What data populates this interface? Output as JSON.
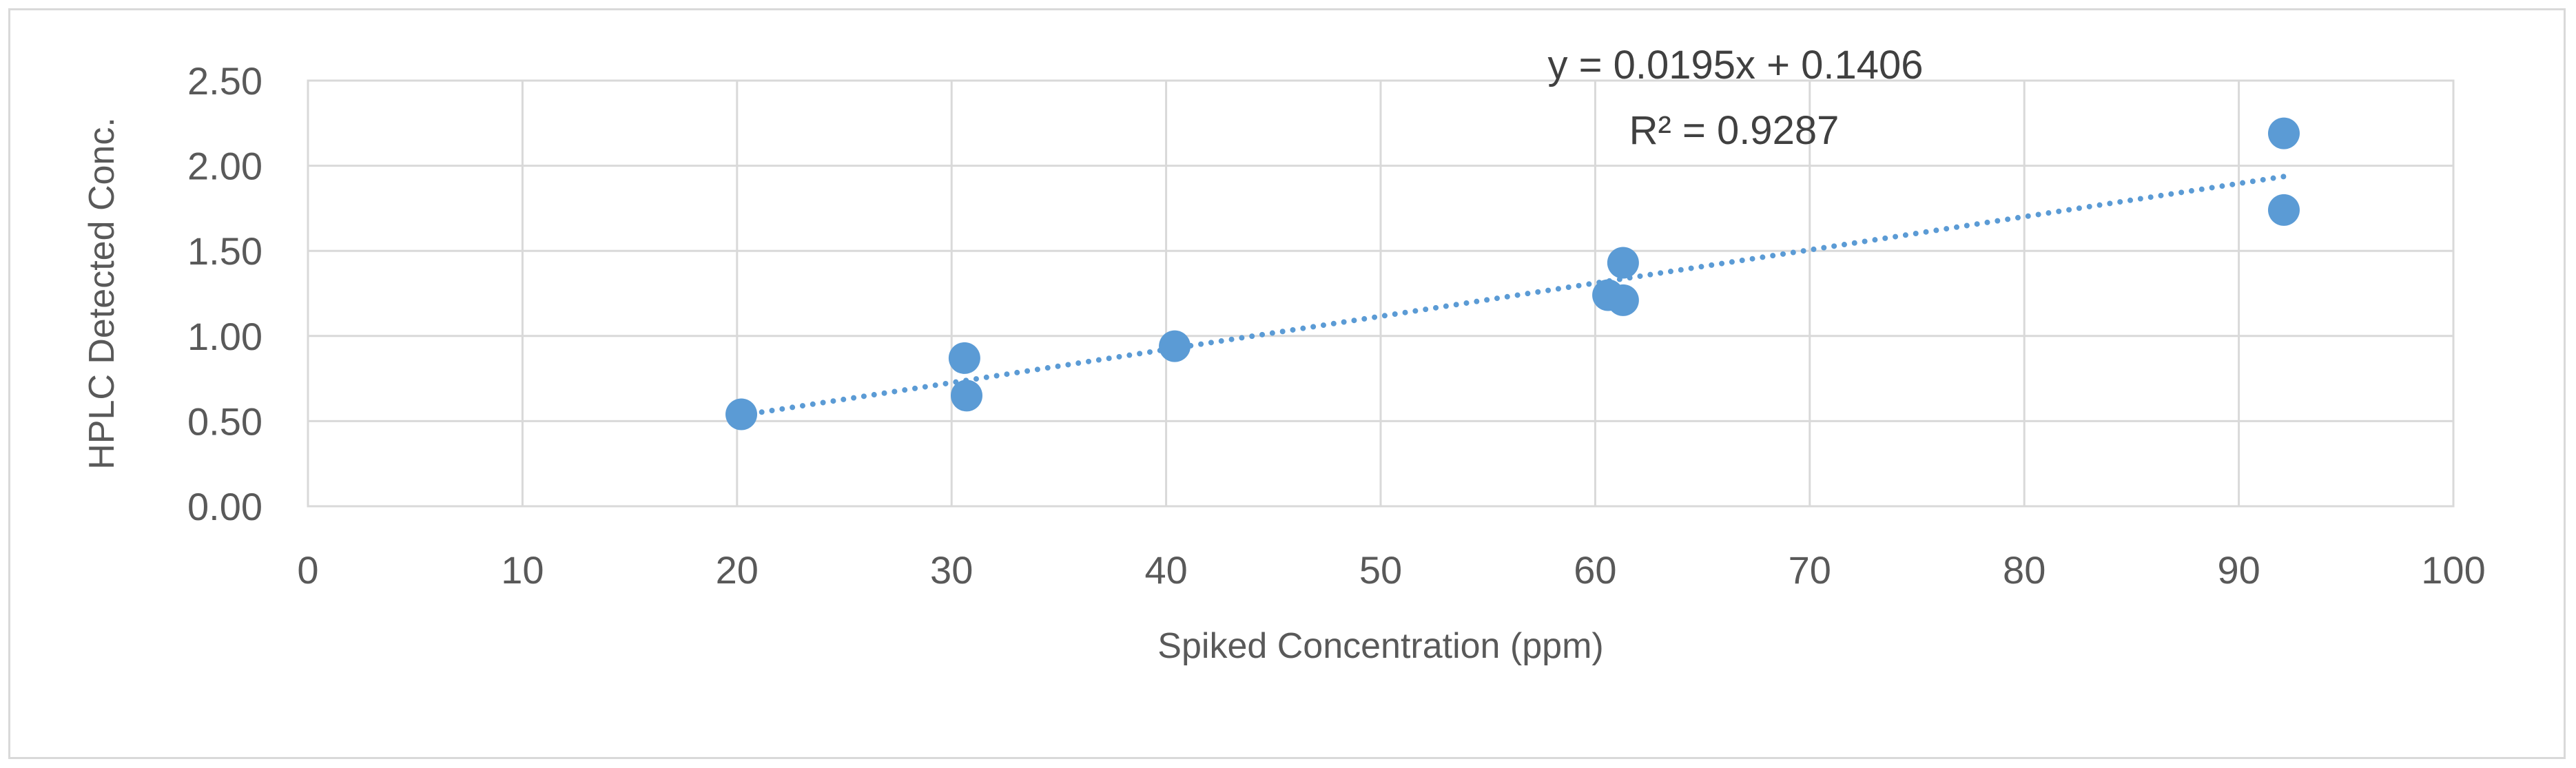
{
  "chart_data": {
    "type": "scatter",
    "title": "",
    "xlabel": "Spiked Concentration (ppm)",
    "ylabel": "HPLC Detected Conc.",
    "xlim": [
      0,
      100
    ],
    "ylim": [
      0,
      2.5
    ],
    "xticks": [
      0,
      10,
      20,
      30,
      40,
      50,
      60,
      70,
      80,
      90,
      100
    ],
    "xtick_labels": [
      "0",
      "10",
      "20",
      "30",
      "40",
      "50",
      "60",
      "70",
      "80",
      "90",
      "100"
    ],
    "yticks": [
      0,
      0.5,
      1.0,
      1.5,
      2.0,
      2.5
    ],
    "ytick_labels": [
      "0.00",
      "0.50",
      "1.00",
      "1.50",
      "2.00",
      "2.50"
    ],
    "grid": true,
    "legend": "none",
    "series": [
      {
        "name": "Samples",
        "color": "#5b9bd5",
        "points": [
          {
            "x": 20.2,
            "y": 0.54
          },
          {
            "x": 30.6,
            "y": 0.87
          },
          {
            "x": 30.7,
            "y": 0.65
          },
          {
            "x": 40.4,
            "y": 0.94
          },
          {
            "x": 60.6,
            "y": 1.24
          },
          {
            "x": 61.3,
            "y": 1.43
          },
          {
            "x": 61.3,
            "y": 1.21
          },
          {
            "x": 92.1,
            "y": 2.19
          },
          {
            "x": 92.1,
            "y": 1.74
          }
        ]
      }
    ],
    "trendline": {
      "type": "linear",
      "style": "dotted",
      "color": "#5b9bd5",
      "slope": 0.0195,
      "intercept": 0.1406,
      "x_range": [
        20.2,
        92.1
      ],
      "equation_label": "y = 0.0195x + 0.1406",
      "r2_label": "R² = 0.9287"
    }
  }
}
